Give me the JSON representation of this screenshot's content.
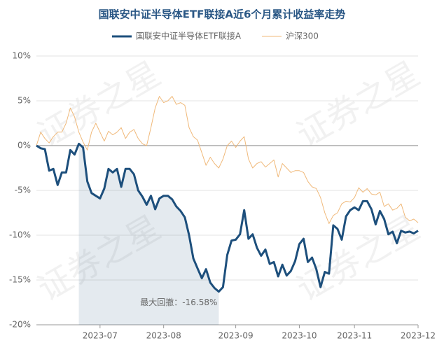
{
  "chart_data": {
    "type": "line",
    "title": "国联安中证半导体ETF联接A近6个月累计收益率走势",
    "watermark": "证券之星",
    "annotation": "最大回撤：-16.58%",
    "categories": [
      null,
      null,
      null,
      null,
      null,
      null,
      null,
      null,
      null,
      null,
      null,
      null,
      null,
      null,
      null,
      "2023-07",
      null,
      null,
      null,
      null,
      null,
      null,
      null,
      null,
      null,
      null,
      null,
      null,
      null,
      null,
      "2023-08",
      null,
      null,
      null,
      null,
      null,
      null,
      null,
      null,
      null,
      null,
      null,
      null,
      null,
      null,
      null,
      null,
      "2023-09",
      null,
      null,
      null,
      null,
      null,
      null,
      null,
      null,
      null,
      null,
      null,
      null,
      null,
      null,
      "2023-10",
      null,
      null,
      null,
      null,
      null,
      null,
      null,
      null,
      null,
      null,
      null,
      null,
      "2023-11",
      null,
      null,
      null,
      null,
      null,
      null,
      null,
      null,
      null,
      null,
      null,
      null,
      null,
      null,
      "2023-12"
    ],
    "series": [
      {
        "name": "国联安中证半导体ETF联接A",
        "color": "#1d4f7c",
        "values": [
          0,
          -0.3,
          -0.4,
          -2.8,
          -2.6,
          -4.4,
          -3.0,
          -3.0,
          -0.5,
          -1.0,
          0.2,
          -0.2,
          -4.0,
          -5.3,
          -5.6,
          -5.9,
          -4.8,
          -2.6,
          -3.0,
          -2.6,
          -4.6,
          -2.6,
          -2.6,
          -3.2,
          -5.0,
          -5.7,
          -6.6,
          -5.6,
          -7.1,
          -5.9,
          -5.6,
          -5.6,
          -6.0,
          -6.8,
          -7.3,
          -8.0,
          -10.0,
          -12.6,
          -13.7,
          -14.8,
          -13.8,
          -15.3,
          -15.9,
          -16.3,
          -15.8,
          -12.2,
          -10.6,
          -10.5,
          -9.9,
          -7.2,
          -10.4,
          -9.9,
          -11.4,
          -12.3,
          -11.6,
          -13.2,
          -13.0,
          -14.6,
          -13.3,
          -14.5,
          -14.0,
          -12.9,
          -11.0,
          -10.4,
          -13.0,
          -12.5,
          -13.8,
          -15.8,
          -14.1,
          -14.3,
          -8.9,
          -9.3,
          -10.5,
          -7.9,
          -7.2,
          -6.9,
          -7.2,
          -6.2,
          -6.2,
          -7.1,
          -8.8,
          -7.3,
          -8.2,
          -9.9,
          -9.6,
          -10.9,
          -9.5,
          -9.7,
          -9.6,
          -9.8,
          -9.5
        ]
      },
      {
        "name": "沪深300",
        "color": "#f0b97a",
        "values": [
          0,
          1.5,
          0.8,
          0.3,
          1.0,
          1.5,
          1.5,
          2.5,
          4.2,
          3.2,
          1.5,
          0.4,
          -0.5,
          1.5,
          2.5,
          1.5,
          0.5,
          1.6,
          1.2,
          1.5,
          2.0,
          0.8,
          1.5,
          1.8,
          0.8,
          0.2,
          0.0,
          2.0,
          4.2,
          5.5,
          4.8,
          5.0,
          5.5,
          4.6,
          4.8,
          4.5,
          2.0,
          1.0,
          0.6,
          -0.8,
          -2.2,
          -1.3,
          -2.0,
          -2.5,
          -1.5,
          0.0,
          0.5,
          -0.2,
          0.5,
          1.0,
          -1.5,
          -2.5,
          -2.0,
          -1.8,
          -2.4,
          -2.0,
          -1.6,
          -3.5,
          -2.0,
          -2.5,
          -3.0,
          -2.8,
          -2.8,
          -3.0,
          -4.0,
          -4.6,
          -4.8,
          -5.8,
          -7.5,
          -8.7,
          -7.8,
          -7.5,
          -6.5,
          -6.2,
          -6.3,
          -5.8,
          -4.7,
          -5.2,
          -4.8,
          -5.4,
          -5.5,
          -5.2,
          -6.8,
          -6.5,
          -7.2,
          -7.0,
          -6.5,
          -8.0,
          -8.4,
          -8.2,
          -8.6
        ]
      }
    ],
    "ylim": [
      -20,
      10
    ],
    "yticks": [
      {
        "value": -20,
        "label": "-20%"
      },
      {
        "value": -15,
        "label": "-15%"
      },
      {
        "value": -10,
        "label": "-10%"
      },
      {
        "value": -5,
        "label": "-5%"
      },
      {
        "value": 0,
        "label": "0%"
      },
      {
        "value": 5,
        "label": "5%"
      },
      {
        "value": 10,
        "label": "10%"
      }
    ],
    "grid": true
  }
}
